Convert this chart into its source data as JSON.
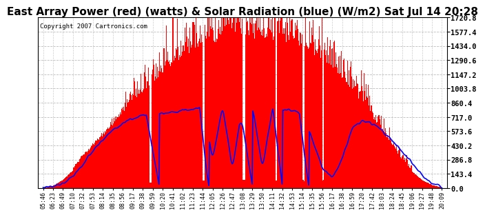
{
  "title": "East Array Power (red) (watts) & Solar Radiation (blue) (W/m2) Sat Jul 14 20:28",
  "copyright": "Copyright 2007 Cartronics.com",
  "ylabel_right_ticks": [
    0.0,
    143.4,
    286.8,
    430.2,
    573.6,
    717.0,
    860.4,
    1003.8,
    1147.2,
    1290.6,
    1434.0,
    1577.4,
    1720.8
  ],
  "ymax": 1720.8,
  "ymin": 0.0,
  "bg_color": "#ffffff",
  "plot_bg_color": "#ffffff",
  "title_fontsize": 11,
  "x_labels": [
    "05:46",
    "06:23",
    "06:49",
    "07:10",
    "07:32",
    "07:53",
    "08:14",
    "08:35",
    "08:56",
    "09:17",
    "09:38",
    "09:59",
    "10:20",
    "10:41",
    "11:02",
    "11:23",
    "11:44",
    "12:05",
    "12:26",
    "12:47",
    "13:08",
    "13:29",
    "13:50",
    "14:11",
    "14:32",
    "14:53",
    "15:14",
    "15:35",
    "15:56",
    "16:17",
    "16:38",
    "16:59",
    "17:20",
    "17:42",
    "18:03",
    "18:24",
    "18:45",
    "19:06",
    "19:27",
    "19:48",
    "20:09"
  ],
  "n_labels": 41,
  "power_envelope": [
    0,
    20,
    80,
    180,
    320,
    420,
    520,
    640,
    750,
    860,
    950,
    1050,
    1150,
    1250,
    1320,
    1380,
    1430,
    1460,
    1490,
    1510,
    1520,
    1510,
    1500,
    1490,
    1470,
    1440,
    1400,
    1350,
    1280,
    1200,
    1100,
    980,
    860,
    720,
    570,
    420,
    290,
    170,
    80,
    30,
    5
  ],
  "radiation_data": [
    0,
    15,
    50,
    120,
    240,
    370,
    490,
    580,
    650,
    700,
    730,
    750,
    760,
    770,
    780,
    800,
    810,
    300,
    820,
    200,
    830,
    820,
    200,
    810,
    800,
    780,
    750,
    500,
    200,
    100,
    300,
    600,
    680,
    650,
    580,
    480,
    370,
    250,
    130,
    50,
    10
  ]
}
